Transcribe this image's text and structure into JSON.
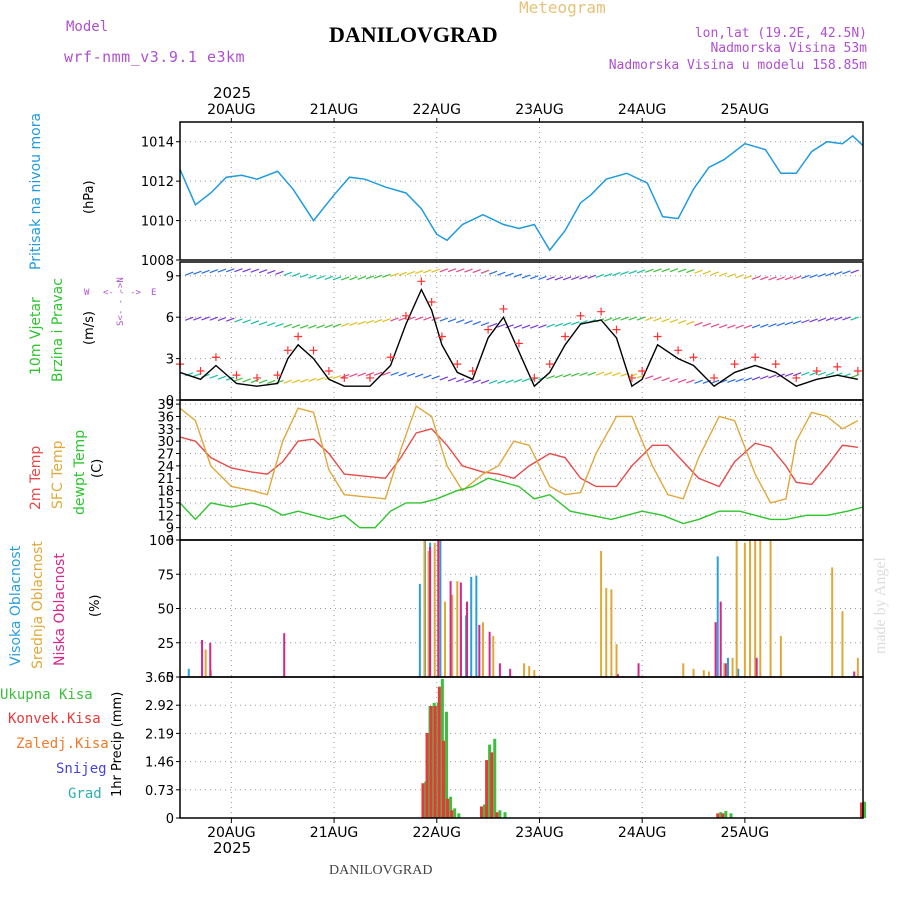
{
  "header": {
    "model_label": "Model",
    "model_name": "wrf-nmm_v3.9.1 e3km",
    "location": "DANILOVGRAD",
    "meteogram": "Meteogram",
    "lonlat": "lon,lat (19.2E, 42.5N)",
    "elev": "Nadmorska Visina 53m",
    "elev_model": "Nadmorska Visina u modelu 158.85m",
    "year_top": "2025",
    "footer_location": "DANILOVGRAD",
    "year_bottom": "2025",
    "watermark": "made by Angel"
  },
  "colors": {
    "pressure": "#1f9be0",
    "wind_black": "#000000",
    "wind_plus": "#ff3030",
    "t2m": "#e84a4a",
    "sfc": "#e0a83a",
    "dew": "#2ec52e",
    "high_cloud": "#2a9fe0",
    "mid_cloud": "#e0a83a",
    "low_cloud": "#d6268a",
    "rain_total": "#3cbf3c",
    "rain_conv": "#e43a3a",
    "freezing": "#f07a2a",
    "snow": "#4444dd",
    "hail": "#2ab0b0",
    "labels_purple": "#b050d0",
    "grid": "#999999"
  },
  "days": [
    "20AUG",
    "21AUG",
    "22AUG",
    "23AUG",
    "24AUG",
    "25AUG"
  ],
  "panel_labels": {
    "pressure": {
      "name": "Pritisak na nivou mora",
      "unit": "(hPa)"
    },
    "wind": {
      "name1": "10m Vjetar",
      "name2": "Brzina i Pravac",
      "unit": "(m/s)",
      "compass_n": "N",
      "compass_s": "S",
      "compass_w": "W",
      "compass_e": "E",
      "compass_w_arrow": "<- - ->"
    },
    "temp": {
      "t2m": "2m Temp",
      "sfc": "SFC Temp",
      "dew": "dewpt Temp",
      "unit": "(C)"
    },
    "cloud": {
      "high": "Visoka Oblacnost",
      "mid": "Srednja Oblacnost",
      "low": "Niska Oblacnost",
      "unit": "(%)"
    },
    "precip": {
      "total": "Ukupna Kisa",
      "conv": "Konvek.Kisa",
      "freezing": "Zaledj.Kisa",
      "snow": "Snijeg",
      "hail": "Grad",
      "unit": "1hr Precip (mm)"
    }
  },
  "chart_data": [
    {
      "type": "line",
      "title": "Pritisak na nivou mora",
      "ylabel": "(hPa)",
      "x_unit": "days since 19AUG 12UTC",
      "ylim": [
        1008,
        1015
      ],
      "yticks": [
        1008,
        1010,
        1012,
        1014
      ],
      "series": [
        {
          "name": "Pressure",
          "x": [
            0,
            0.15,
            0.3,
            0.45,
            0.6,
            0.75,
            0.95,
            1.1,
            1.3,
            1.5,
            1.65,
            1.8,
            2.0,
            2.2,
            2.35,
            2.5,
            2.6,
            2.75,
            2.95,
            3.15,
            3.3,
            3.45,
            3.6,
            3.75,
            3.9,
            4.0,
            4.15,
            4.35,
            4.55,
            4.7,
            4.85,
            5.0,
            5.15,
            5.3,
            5.5,
            5.7,
            5.85,
            6.0,
            6.15,
            6.3,
            6.45,
            6.55,
            6.65
          ],
          "values": [
            1012.6,
            1010.8,
            1011.4,
            1012.2,
            1012.3,
            1012.1,
            1012.5,
            1011.6,
            1010.0,
            1011.3,
            1012.2,
            1012.1,
            1011.7,
            1011.4,
            1010.6,
            1009.3,
            1009.0,
            1009.8,
            1010.3,
            1009.8,
            1009.6,
            1009.8,
            1008.5,
            1009.5,
            1010.9,
            1011.3,
            1012.1,
            1012.4,
            1011.9,
            1010.2,
            1010.1,
            1011.6,
            1012.7,
            1013.1,
            1013.9,
            1013.6,
            1012.4,
            1012.4,
            1013.5,
            1014.0,
            1013.9,
            1014.3,
            1013.8
          ]
        }
      ]
    },
    {
      "type": "line",
      "title": "10m Vjetar Brzina i Pravac",
      "ylabel": "(m/s)",
      "ylim": [
        0,
        10
      ],
      "yticks": [
        0,
        3,
        6,
        9
      ],
      "series": [
        {
          "name": "Wind speed",
          "x": [
            0,
            0.2,
            0.35,
            0.55,
            0.75,
            0.95,
            1.05,
            1.15,
            1.3,
            1.45,
            1.6,
            1.85,
            2.05,
            2.2,
            2.35,
            2.45,
            2.55,
            2.7,
            2.85,
            3.0,
            3.15,
            3.3,
            3.45,
            3.6,
            3.75,
            3.9,
            4.1,
            4.25,
            4.4,
            4.5,
            4.65,
            4.85,
            5.0,
            5.2,
            5.4,
            5.6,
            5.8,
            6.0,
            6.2,
            6.4,
            6.6
          ],
          "values": [
            2.0,
            1.5,
            2.5,
            1.2,
            1.0,
            1.2,
            3.0,
            4.0,
            3.0,
            1.5,
            1.0,
            1.0,
            2.5,
            5.5,
            8.0,
            6.5,
            4.0,
            2.0,
            1.5,
            4.5,
            6.0,
            3.5,
            1.0,
            2.0,
            4.0,
            5.5,
            5.8,
            4.5,
            1.0,
            1.5,
            4.0,
            3.0,
            2.5,
            1.0,
            2.0,
            2.5,
            2.0,
            1.0,
            1.5,
            1.8,
            1.5
          ]
        },
        {
          "name": "Barbs level 9",
          "x": [
            0.1,
            0.4,
            0.7,
            1.0,
            1.3,
            1.6,
            1.9,
            2.2,
            2.5,
            2.8,
            3.1,
            3.4,
            3.7,
            4.0,
            4.3,
            4.6,
            4.9,
            5.2,
            5.5,
            5.8,
            6.1,
            6.4
          ],
          "values": [
            9,
            9,
            9,
            9,
            9,
            9,
            9,
            9,
            9,
            9,
            9,
            9,
            9,
            9,
            9,
            9,
            9,
            9,
            9,
            9,
            9,
            9
          ]
        }
      ]
    },
    {
      "type": "line",
      "title": "2m Temp / SFC Temp / dewpt Temp",
      "ylabel": "(C)",
      "ylim": [
        6,
        40
      ],
      "yticks": [
        6,
        9,
        12,
        15,
        18,
        21,
        24,
        27,
        30,
        33,
        36,
        39
      ],
      "series": [
        {
          "name": "2m Temp",
          "x": [
            0,
            0.15,
            0.3,
            0.5,
            0.7,
            0.85,
            1.0,
            1.15,
            1.3,
            1.45,
            1.6,
            1.8,
            2.0,
            2.15,
            2.3,
            2.45,
            2.6,
            2.75,
            2.95,
            3.1,
            3.25,
            3.4,
            3.6,
            3.75,
            3.9,
            4.05,
            4.25,
            4.4,
            4.6,
            4.75,
            4.9,
            5.05,
            5.25,
            5.4,
            5.6,
            5.75,
            5.9,
            6.0,
            6.15,
            6.3,
            6.45,
            6.6
          ],
          "values": [
            31,
            30,
            26,
            23.5,
            22.5,
            22,
            25,
            30,
            30.5,
            27,
            22,
            21.5,
            21,
            26,
            32,
            33,
            29,
            24,
            22.5,
            22,
            21,
            24,
            27,
            26,
            21,
            19,
            19,
            24,
            29,
            29,
            25,
            21,
            19,
            25,
            29.5,
            28.5,
            24,
            20,
            19.5,
            24,
            29,
            28.5
          ]
        },
        {
          "name": "SFC Temp",
          "x": [
            0,
            0.15,
            0.3,
            0.5,
            0.7,
            0.85,
            1.0,
            1.15,
            1.3,
            1.45,
            1.6,
            1.8,
            2.0,
            2.15,
            2.3,
            2.45,
            2.6,
            2.75,
            2.95,
            3.1,
            3.25,
            3.4,
            3.6,
            3.75,
            3.9,
            4.05,
            4.25,
            4.4,
            4.6,
            4.75,
            4.9,
            5.05,
            5.25,
            5.4,
            5.6,
            5.75,
            5.9,
            6.0,
            6.15,
            6.3,
            6.45,
            6.6
          ],
          "values": [
            38,
            35,
            24,
            19,
            18,
            17,
            30,
            38,
            37,
            23,
            17,
            16.5,
            16,
            28,
            38.5,
            36,
            24,
            18,
            22,
            24,
            30,
            29,
            19,
            17,
            17.5,
            27,
            36,
            36,
            24,
            17,
            16,
            26,
            36,
            35,
            22,
            15,
            16,
            30,
            37,
            36,
            33,
            35
          ]
        },
        {
          "name": "dewpt Temp",
          "x": [
            0,
            0.15,
            0.3,
            0.5,
            0.7,
            0.85,
            1.0,
            1.15,
            1.3,
            1.45,
            1.6,
            1.75,
            1.9,
            2.05,
            2.2,
            2.35,
            2.5,
            2.7,
            2.85,
            3.0,
            3.15,
            3.3,
            3.45,
            3.6,
            3.8,
            4.0,
            4.2,
            4.35,
            4.5,
            4.7,
            4.9,
            5.05,
            5.25,
            5.45,
            5.6,
            5.75,
            5.9,
            6.1,
            6.3,
            6.5,
            6.65
          ],
          "values": [
            15,
            11,
            15,
            14,
            15,
            14,
            12,
            13,
            12,
            11,
            12,
            9,
            9,
            13,
            15,
            15,
            16,
            18,
            19,
            21,
            20,
            19,
            16,
            17,
            13,
            12,
            11,
            12,
            13,
            12,
            10,
            11,
            13,
            13,
            12,
            11,
            11,
            12,
            12,
            13,
            14
          ]
        }
      ]
    },
    {
      "type": "bar",
      "title": "Oblacnost",
      "ylabel": "(%)",
      "ylim": [
        0,
        100
      ],
      "yticks": [
        0,
        25,
        50,
        75,
        100
      ],
      "series": [
        {
          "name": "Visoka Oblacnost",
          "x": [
            0.1,
            2.35,
            2.4,
            2.45,
            2.55,
            2.75,
            2.8,
            2.85,
            2.9,
            5.25,
            5.35,
            5.45
          ],
          "values": [
            6,
            68,
            100,
            98,
            100,
            45,
            45,
            73,
            74,
            88,
            14,
            6
          ]
        },
        {
          "name": "Srednja Oblacnost",
          "x": [
            0.25,
            0.3,
            2.38,
            2.42,
            2.48,
            2.52,
            2.58,
            2.65,
            2.7,
            2.95,
            3.05,
            3.35,
            3.4,
            3.45,
            4.1,
            4.15,
            4.2,
            4.25,
            4.9,
            5.0,
            5.1,
            5.15,
            5.3,
            5.38,
            5.42,
            5.5,
            5.55,
            5.6,
            5.65,
            5.75,
            5.85,
            6.35,
            6.45,
            6.6
          ],
          "values": [
            20,
            5,
            100,
            92,
            98,
            100,
            55,
            60,
            70,
            40,
            30,
            10,
            8,
            5,
            92,
            65,
            64,
            24,
            10,
            6,
            5,
            4,
            10,
            14,
            100,
            98,
            100,
            100,
            100,
            100,
            30,
            80,
            48,
            14
          ]
        },
        {
          "name": "Niska Oblacnost",
          "x": [
            0.2,
            0.28,
            1.0,
            2.42,
            2.5,
            2.62,
            2.72,
            2.78,
            2.9,
            3.0,
            3.1,
            3.2,
            4.25,
            4.45,
            5.2,
            5.25,
            5.3,
            5.6,
            6.55
          ],
          "values": [
            27,
            25,
            32,
            95,
            100,
            70,
            69,
            55,
            38,
            33,
            10,
            6,
            2,
            10,
            40,
            55,
            10,
            14,
            4
          ]
        }
      ]
    },
    {
      "type": "bar",
      "title": "1hr Precip",
      "ylabel": "1hr Precip (mm)",
      "ylim": [
        0,
        3.65
      ],
      "yticks": [
        0,
        0.73,
        1.46,
        2.19,
        2.92,
        3.65
      ],
      "series": [
        {
          "name": "Ukupna Kisa",
          "x": [
            2.38,
            2.42,
            2.46,
            2.5,
            2.54,
            2.58,
            2.62,
            2.66,
            2.7,
            2.95,
            3.0,
            3.05,
            3.1,
            3.15,
            5.25,
            5.3,
            5.35,
            6.65
          ],
          "values": [
            0.95,
            2.9,
            2.98,
            2.98,
            3.6,
            2.75,
            0.55,
            0.25,
            0.12,
            0.35,
            1.9,
            2.05,
            0.2,
            0.15,
            0.15,
            0.18,
            0.12,
            0.42
          ]
        },
        {
          "name": "Konvek.Kisa",
          "x": [
            2.38,
            2.42,
            2.46,
            2.5,
            2.54,
            2.58,
            2.62,
            2.66,
            2.95,
            3.0,
            3.05,
            3.1,
            5.25,
            5.3,
            6.65
          ],
          "values": [
            0.9,
            2.2,
            2.9,
            2.9,
            3.4,
            2.0,
            0.5,
            0.2,
            0.3,
            1.5,
            1.7,
            0.15,
            0.12,
            0.12,
            0.4
          ]
        },
        {
          "name": "Zaledj.Kisa",
          "x": [],
          "values": []
        },
        {
          "name": "Snijeg",
          "x": [],
          "values": []
        },
        {
          "name": "Grad",
          "x": [],
          "values": []
        }
      ]
    }
  ]
}
